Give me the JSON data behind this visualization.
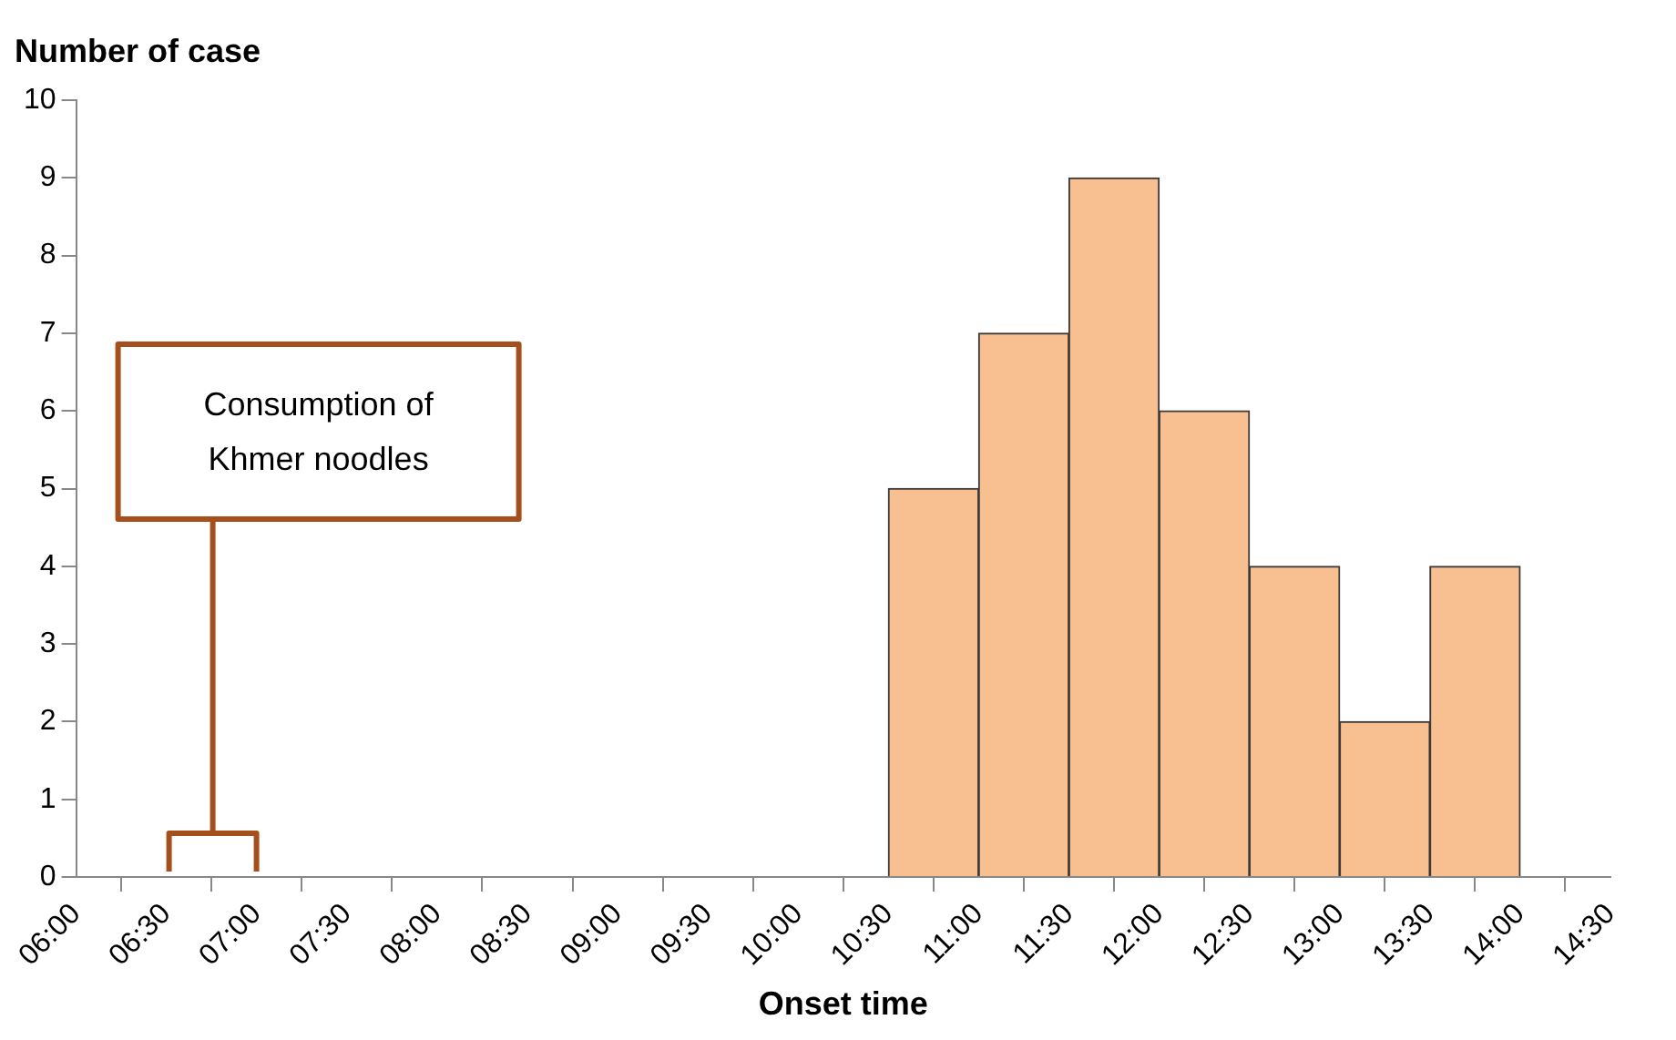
{
  "chart_data": {
    "type": "histogram",
    "xlabel": "Onset time",
    "ylabel": "Number of case",
    "bins": [
      10.5,
      11,
      11.5,
      12,
      12.5,
      13,
      13.5,
      14
    ],
    "values": [
      5,
      7,
      9,
      6,
      4,
      2,
      4
    ],
    "color": "#f8c091",
    "xlim": [
      6,
      14.5
    ],
    "xticks": [
      {
        "value": 6,
        "label": "06:00"
      },
      {
        "value": 6.5,
        "label": "06:30"
      },
      {
        "value": 7,
        "label": "07:00"
      },
      {
        "value": 7.5,
        "label": "07:30"
      },
      {
        "value": 8,
        "label": "08:00"
      },
      {
        "value": 8.5,
        "label": "08:30"
      },
      {
        "value": 9,
        "label": "09:00"
      },
      {
        "value": 9.5,
        "label": "09:30"
      },
      {
        "value": 10,
        "label": "10:00"
      },
      {
        "value": 10.5,
        "label": "10:30"
      },
      {
        "value": 11,
        "label": "11:00"
      },
      {
        "value": 11.5,
        "label": "11:30"
      },
      {
        "value": 12,
        "label": "12:00"
      },
      {
        "value": 12.5,
        "label": "12:30"
      },
      {
        "value": 13,
        "label": "13:00"
      },
      {
        "value": 13.5,
        "label": "13:30"
      },
      {
        "value": 14,
        "label": "14:00"
      },
      {
        "value": 14.5,
        "label": "14:30"
      }
    ],
    "ylim": [
      0,
      10
    ],
    "yticks": [
      0,
      1,
      2,
      3,
      4,
      5,
      6,
      7,
      8,
      9,
      10
    ],
    "grid": false,
    "legend": false,
    "annotations": [
      "Consumption of Khmer noodles"
    ]
  }
}
